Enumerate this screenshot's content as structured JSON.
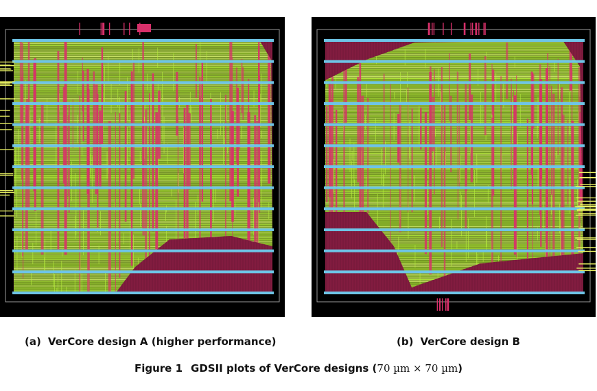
{
  "figure": {
    "number": "Figure 1",
    "caption_text": "GDSII plots of VerCore designs (",
    "caption_math": "70 µm × 70 µm",
    "caption_close": ")"
  },
  "subfigures": [
    {
      "tag": "(a)",
      "label": "VerCore design A (higher performance)"
    },
    {
      "tag": "(b)",
      "label": "VerCore design B"
    }
  ],
  "colors": {
    "background": "#000000",
    "empty_fill": "#7a1a3c",
    "vertical_metal": "#d8306a",
    "routing": "#b8f03c",
    "routing_dense": "#d8f070",
    "power_rail": "#6ec4e6",
    "die_outline": "#9a9a9a",
    "io_pins": "#e8f060"
  }
}
